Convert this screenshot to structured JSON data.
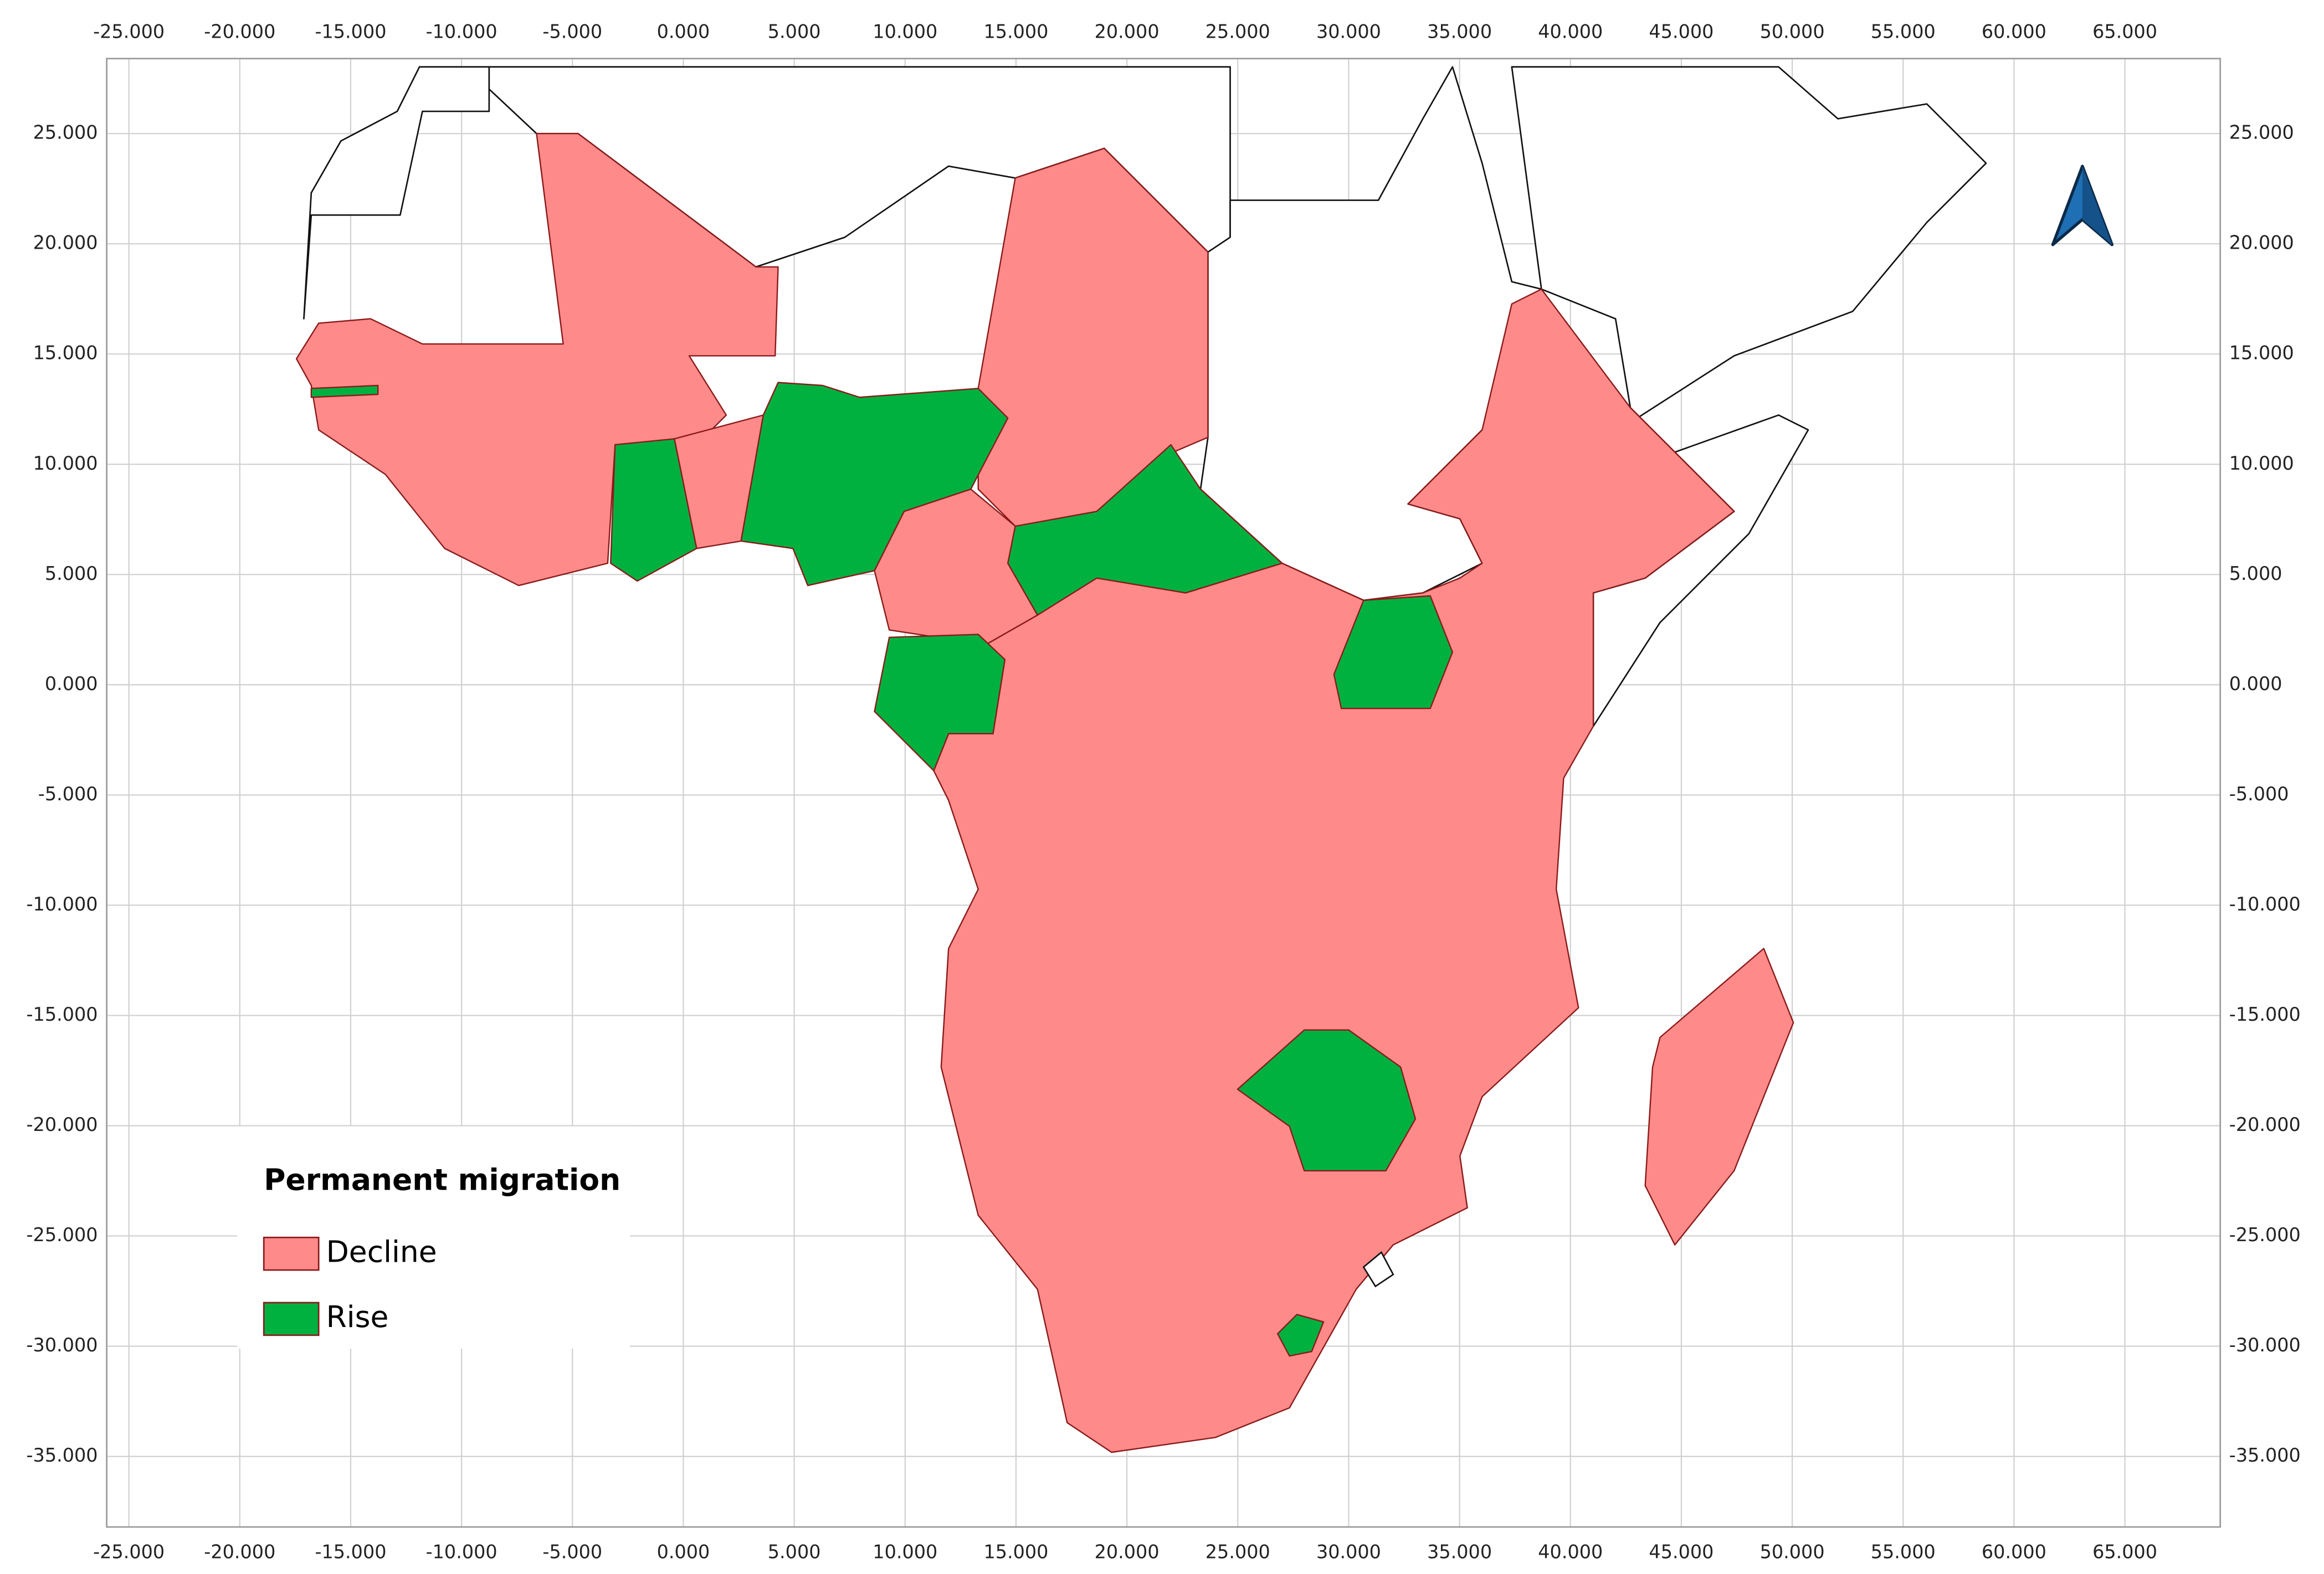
{
  "map": {
    "xlim": [
      -26,
      69.3
    ],
    "ylim": [
      -38.2,
      28.4
    ],
    "xticks": [
      {
        "value": -25,
        "label": "-25.000"
      },
      {
        "value": -20,
        "label": "-20.000"
      },
      {
        "value": -15,
        "label": "-15.000"
      },
      {
        "value": -10,
        "label": "-10.000"
      },
      {
        "value": -5,
        "label": "-5.000"
      },
      {
        "value": 0,
        "label": "0.000"
      },
      {
        "value": 5,
        "label": "5.000"
      },
      {
        "value": 10,
        "label": "10.000"
      },
      {
        "value": 15,
        "label": "15.000"
      },
      {
        "value": 20,
        "label": "20.000"
      },
      {
        "value": 25,
        "label": "25.000"
      },
      {
        "value": 30,
        "label": "30.000"
      },
      {
        "value": 35,
        "label": "35.000"
      },
      {
        "value": 40,
        "label": "40.000"
      },
      {
        "value": 45,
        "label": "45.000"
      },
      {
        "value": 50,
        "label": "50.000"
      },
      {
        "value": 55,
        "label": "55.000"
      },
      {
        "value": 60,
        "label": "60.000"
      },
      {
        "value": 65,
        "label": "65.000"
      }
    ],
    "yticks": [
      {
        "value": 25,
        "label": "25.000"
      },
      {
        "value": 20,
        "label": "20.000"
      },
      {
        "value": 15,
        "label": "15.000"
      },
      {
        "value": 10,
        "label": "10.000"
      },
      {
        "value": 5,
        "label": "5.000"
      },
      {
        "value": 0,
        "label": "0.000"
      },
      {
        "value": -5,
        "label": "-5.000"
      },
      {
        "value": -10,
        "label": "-10.000"
      },
      {
        "value": -15,
        "label": "-15.000"
      },
      {
        "value": -20,
        "label": "-20.000"
      },
      {
        "value": -25,
        "label": "-25.000"
      },
      {
        "value": -30,
        "label": "-30.000"
      },
      {
        "value": -35,
        "label": "-35.000"
      }
    ],
    "legend": {
      "title": "Permanent migration",
      "items": [
        {
          "label": "Decline",
          "color": "#ff8a8a"
        },
        {
          "label": "Rise",
          "color": "#00b140"
        }
      ]
    }
  }
}
